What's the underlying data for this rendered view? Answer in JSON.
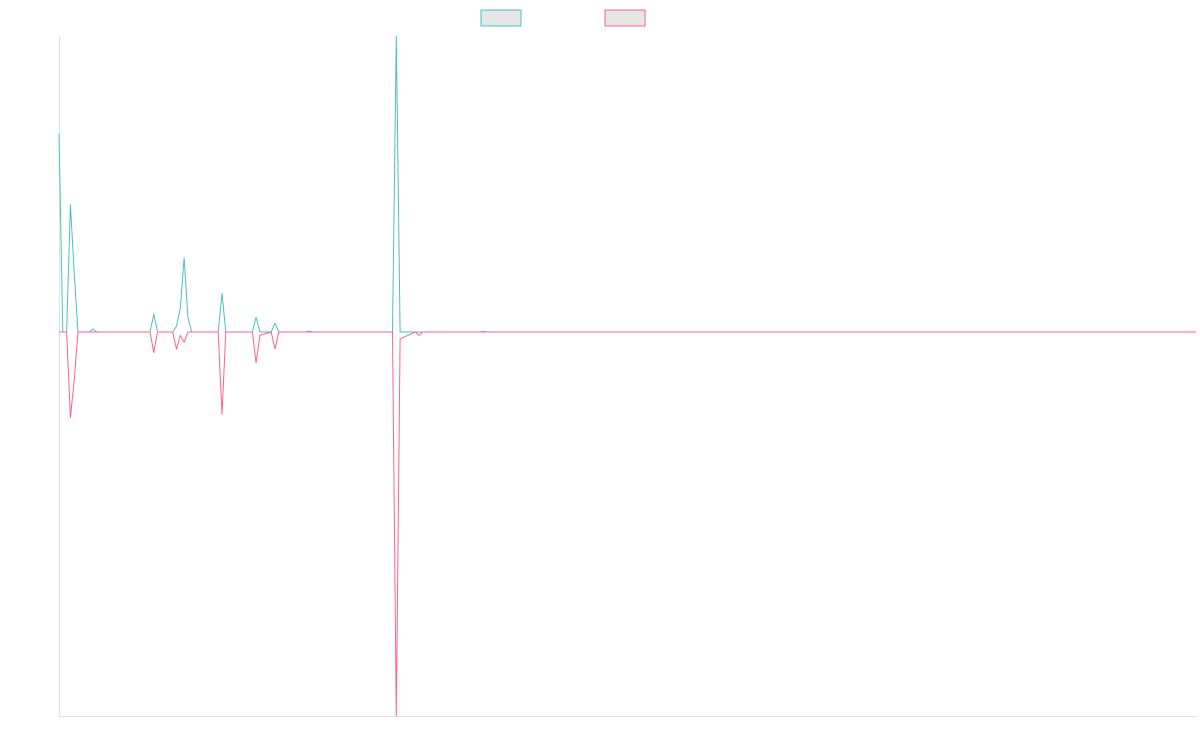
{
  "chart_data": {
    "type": "line",
    "title": "",
    "xlabel": "",
    "ylabel": "",
    "xlim": [
      0,
      300
    ],
    "ylim": [
      -1,
      1
    ],
    "grid": false,
    "legend": "top-center",
    "series": [
      {
        "color": "#4bc0c0",
        "points": [
          [
            0,
            0.67
          ],
          [
            1,
            0
          ],
          [
            2,
            0
          ],
          [
            3,
            0.43
          ],
          [
            4,
            0.2
          ],
          [
            5,
            0
          ],
          [
            8,
            0
          ],
          [
            9,
            0.01
          ],
          [
            10,
            0
          ],
          [
            24,
            0
          ],
          [
            25,
            0.06
          ],
          [
            26,
            0
          ],
          [
            30,
            0
          ],
          [
            31,
            0.02
          ],
          [
            32,
            0.08
          ],
          [
            33,
            0.25
          ],
          [
            34,
            0.05
          ],
          [
            35,
            0
          ],
          [
            42,
            0
          ],
          [
            43,
            0.13
          ],
          [
            44,
            0
          ],
          [
            51,
            0
          ],
          [
            52,
            0.05
          ],
          [
            53,
            0
          ],
          [
            56,
            0
          ],
          [
            57,
            0.03
          ],
          [
            58,
            0
          ],
          [
            65,
            0
          ],
          [
            66,
            0.003
          ],
          [
            67,
            0
          ],
          [
            88,
            0
          ],
          [
            89,
            1.0
          ],
          [
            90,
            0
          ],
          [
            111,
            0
          ],
          [
            112,
            0.002
          ],
          [
            113,
            0
          ],
          [
            300,
            0
          ]
        ]
      },
      {
        "color": "#ff6384",
        "points": [
          [
            0,
            0
          ],
          [
            1,
            0
          ],
          [
            2,
            0
          ],
          [
            3,
            -0.25
          ],
          [
            4,
            -0.14
          ],
          [
            5,
            0
          ],
          [
            24,
            0
          ],
          [
            25,
            -0.06
          ],
          [
            26,
            0
          ],
          [
            30,
            0
          ],
          [
            31,
            -0.05
          ],
          [
            32,
            -0.01
          ],
          [
            33,
            -0.03
          ],
          [
            34,
            0
          ],
          [
            42,
            0
          ],
          [
            43,
            -0.24
          ],
          [
            44,
            0
          ],
          [
            51,
            0
          ],
          [
            52,
            -0.09
          ],
          [
            53,
            -0.01
          ],
          [
            56,
            0
          ],
          [
            57,
            -0.05
          ],
          [
            58,
            0
          ],
          [
            88,
            0
          ],
          [
            89,
            -1.12
          ],
          [
            90,
            -0.02
          ],
          [
            94,
            0
          ],
          [
            95,
            -0.01
          ],
          [
            96,
            0
          ],
          [
            300,
            0
          ]
        ]
      }
    ]
  }
}
